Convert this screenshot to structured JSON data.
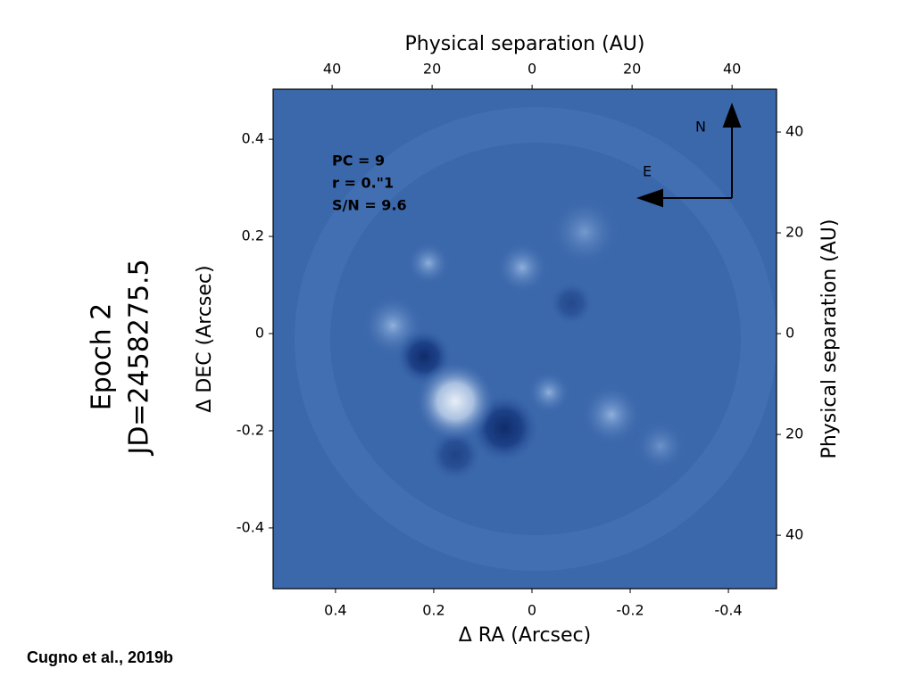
{
  "chart_data": {
    "type": "image",
    "xlabel": "Δ RA (Arcsec)",
    "ylabel": "Δ DEC (Arcsec)",
    "x2label": "Physical separation (AU)",
    "y2label": "Physical separation (AU)",
    "side_labels": [
      "Epoch 2",
      "JD=2458275.5"
    ],
    "annotations": [
      "PC = 9",
      "r = 0.\"1",
      "S/N = 9.6"
    ],
    "compass": {
      "north": "N",
      "east": "E"
    },
    "footer": "Cugno et al., 2019b",
    "xlim": [
      0.527,
      -0.498
    ],
    "xticks": [
      0.4,
      0.2,
      0,
      -0.2,
      -0.4
    ],
    "ylim": [
      -0.525,
      0.503
    ],
    "yticks": [
      0.4,
      0.2,
      0,
      -0.2,
      -0.4
    ],
    "x2lim": [
      51.8,
      -48.9
    ],
    "x2ticks": [
      40,
      20,
      0,
      {
        "value": -20,
        "label": "20"
      },
      {
        "value": -40,
        "label": "40"
      }
    ],
    "y2lim": [
      -50.6,
      48.5
    ],
    "y2ticks": [
      40,
      20,
      0,
      {
        "value": -20,
        "label": "20"
      },
      {
        "value": -40,
        "label": "40"
      }
    ]
  }
}
